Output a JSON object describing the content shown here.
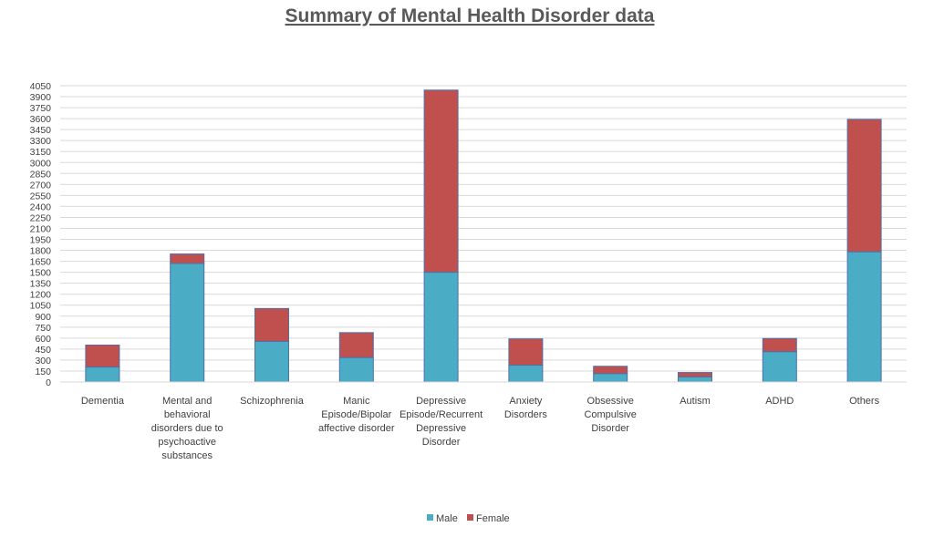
{
  "chart_data": {
    "type": "bar",
    "stacked": true,
    "title": "Summary of Mental Health Disorder data",
    "categories": [
      [
        "Dementia"
      ],
      [
        "Mental and",
        "behavioral",
        "disorders due to",
        "psychoactive",
        "substances"
      ],
      [
        "Schizophrenia"
      ],
      [
        "Manic",
        "Episode/Bipolar",
        "affective disorder"
      ],
      [
        "Depressive",
        "Episode/Recurrent",
        "Depressive",
        "Disorder"
      ],
      [
        "Anxiety",
        "Disorders"
      ],
      [
        "Obsessive",
        "Compulsive",
        "Disorder"
      ],
      [
        "Autism"
      ],
      [
        "ADHD"
      ],
      [
        "Others"
      ]
    ],
    "series": [
      {
        "name": "Male",
        "color": "#4BACC6",
        "values": [
          205,
          1620,
          555,
          335,
          1500,
          230,
          115,
          70,
          415,
          1780
        ]
      },
      {
        "name": "Female",
        "color": "#C0504D",
        "values": [
          300,
          130,
          450,
          340,
          2490,
          360,
          100,
          60,
          180,
          1810
        ]
      }
    ],
    "ylim": [
      0,
      4050
    ],
    "ytick_step": 150,
    "yticks": [
      "0",
      "150",
      "300",
      "450",
      "600",
      "750",
      "900",
      "1050",
      "1200",
      "1350",
      "1500",
      "1650",
      "1800",
      "1950",
      "2100",
      "2250",
      "2400",
      "2550",
      "2700",
      "2850",
      "3000",
      "3150",
      "3300",
      "3450",
      "3600",
      "3750",
      "3900",
      "4050"
    ],
    "grid": true,
    "legend_position": "bottom",
    "xlabel": "",
    "ylabel": ""
  }
}
